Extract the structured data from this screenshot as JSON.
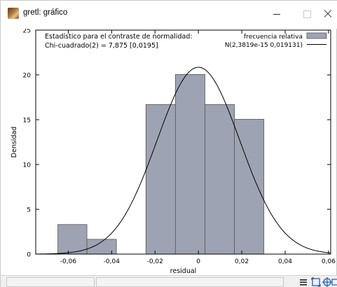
{
  "window": {
    "title": "gretl: gráfico",
    "minimize_icon": "minimize-icon",
    "maximize_icon": "maximize-icon",
    "close_icon": "close-icon"
  },
  "annotation": {
    "line1": "Estadístico para el contraste de normalidad:",
    "line2": "Chi-cuadrado(2) = 7,875 [0,0195]"
  },
  "chart_data": {
    "type": "bar",
    "title": "",
    "xlabel": "residual",
    "ylabel": "Densidad",
    "xlim": [
      -0.075,
      0.061
    ],
    "ylim": [
      0,
      25
    ],
    "x_ticks": [
      -0.06,
      -0.04,
      -0.02,
      0,
      0.02,
      0.04,
      0.06
    ],
    "x_tick_labels": [
      "-0,06",
      "-0,04",
      "-0,02",
      "0",
      "0,02",
      "0,04",
      "0,06"
    ],
    "y_ticks": [
      0,
      5,
      10,
      15,
      20,
      25
    ],
    "y_tick_labels": [
      "0",
      "5",
      "10",
      "15",
      "20",
      "25"
    ],
    "grid": false,
    "legend_position": "top-right",
    "series": [
      {
        "name": "frecuencia relativa",
        "kind": "histogram",
        "color": "#9ea3b3",
        "bins": [
          {
            "x0": -0.0648,
            "x1": -0.0514,
            "y": 3.3
          },
          {
            "x0": -0.0514,
            "x1": -0.0378,
            "y": 1.65
          },
          {
            "x0": -0.0378,
            "x1": -0.0242,
            "y": 0
          },
          {
            "x0": -0.0242,
            "x1": -0.0106,
            "y": 16.7
          },
          {
            "x0": -0.0106,
            "x1": 0.003,
            "y": 20.05
          },
          {
            "x0": 0.003,
            "x1": 0.0166,
            "y": 16.7
          },
          {
            "x0": 0.0166,
            "x1": 0.0302,
            "y": 15.05
          }
        ]
      },
      {
        "name": "N(2,3819e-15 0,019131)",
        "kind": "normal_density",
        "color": "#000000",
        "mean": 2.3819e-15,
        "sd": 0.019131
      }
    ]
  },
  "statusbar": {
    "icons": [
      "menu-icon",
      "zoom-icon",
      "crosshair-icon",
      "extra-icon"
    ]
  }
}
